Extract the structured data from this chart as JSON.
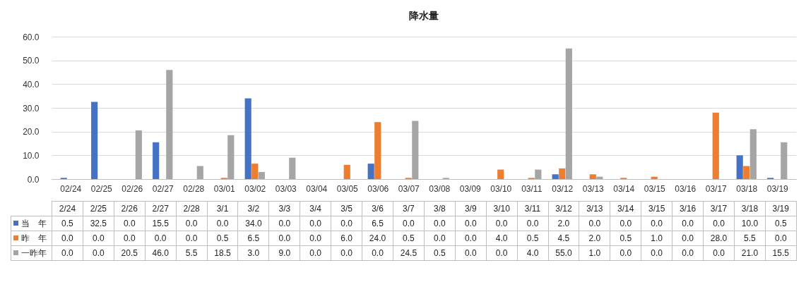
{
  "chart_data": {
    "type": "bar",
    "title": "降水量",
    "categories": [
      "02/24",
      "02/25",
      "02/26",
      "02/27",
      "02/28",
      "03/01",
      "03/02",
      "03/03",
      "03/04",
      "03/05",
      "03/06",
      "03/07",
      "03/08",
      "03/09",
      "03/10",
      "03/11",
      "03/12",
      "03/13",
      "03/14",
      "03/15",
      "03/16",
      "03/17",
      "03/18",
      "03/19"
    ],
    "annotations": [
      "2/24",
      "2/25",
      "2/26",
      "2/27",
      "2/28",
      "3/1",
      "3/2",
      "3/3",
      "3/4",
      "3/5",
      "3/6",
      "3/7",
      "3/8",
      "3/9",
      "3/10",
      "3/11",
      "3/12",
      "3/13",
      "3/14",
      "3/15",
      "3/16",
      "3/17",
      "3/18",
      "3/19"
    ],
    "series": [
      {
        "name": "当　年",
        "color": "#4472c4",
        "values": [
          0.5,
          32.5,
          0,
          15.5,
          0,
          0,
          34,
          0,
          0,
          0,
          6.5,
          0,
          0,
          0,
          0,
          0,
          2,
          0,
          0,
          0,
          0,
          0,
          10,
          0.5
        ],
        "value_labels": [
          "0.5",
          "32.5",
          "0.0",
          "15.5",
          "0.0",
          "0.0",
          "34.0",
          "0.0",
          "0.0",
          "0.0",
          "6.5",
          "0.0",
          "0.0",
          "0.0",
          "0.0",
          "0.0",
          "2.0",
          "0.0",
          "0.0",
          "0.0",
          "0.0",
          "0.0",
          "10.0",
          "0.5"
        ]
      },
      {
        "name": "昨　年",
        "color": "#ed7d31",
        "values": [
          0,
          0,
          0,
          0,
          0,
          0.5,
          6.5,
          0,
          0,
          6,
          24,
          0.5,
          0,
          0,
          4,
          0.5,
          4.5,
          2,
          0.5,
          1,
          0,
          28,
          5.5,
          0
        ],
        "value_labels": [
          "0.0",
          "0.0",
          "0.0",
          "0.0",
          "0.0",
          "0.5",
          "6.5",
          "0.0",
          "0.0",
          "6.0",
          "24.0",
          "0.5",
          "0.0",
          "0.0",
          "4.0",
          "0.5",
          "4.5",
          "2.0",
          "0.5",
          "1.0",
          "0.0",
          "28.0",
          "5.5",
          "0.0"
        ]
      },
      {
        "name": "一昨年",
        "color": "#a5a5a5",
        "values": [
          0,
          0,
          20.5,
          46,
          5.5,
          18.5,
          3,
          9,
          0,
          0,
          0,
          24.5,
          0.5,
          0,
          0,
          4,
          55,
          1,
          0,
          0,
          0,
          0,
          21,
          15.5
        ],
        "value_labels": [
          "0.0",
          "0.0",
          "20.5",
          "46.0",
          "5.5",
          "18.5",
          "3.0",
          "9.0",
          "0.0",
          "0.0",
          "0.0",
          "24.5",
          "0.5",
          "0.0",
          "0.0",
          "4.0",
          "55.0",
          "1.0",
          "0.0",
          "0.0",
          "0.0",
          "0.0",
          "21.0",
          "15.5"
        ]
      }
    ],
    "ylim": [
      0,
      60
    ],
    "yticks": [
      {
        "value": 0,
        "label": "0.0"
      },
      {
        "value": 10,
        "label": "10.0"
      },
      {
        "value": 20,
        "label": "20.0"
      },
      {
        "value": 30,
        "label": "30.0"
      },
      {
        "value": 40,
        "label": "40.0"
      },
      {
        "value": 50,
        "label": "50.0"
      },
      {
        "value": 60,
        "label": "60.0"
      }
    ],
    "grid": "y",
    "legend": "bottom"
  }
}
